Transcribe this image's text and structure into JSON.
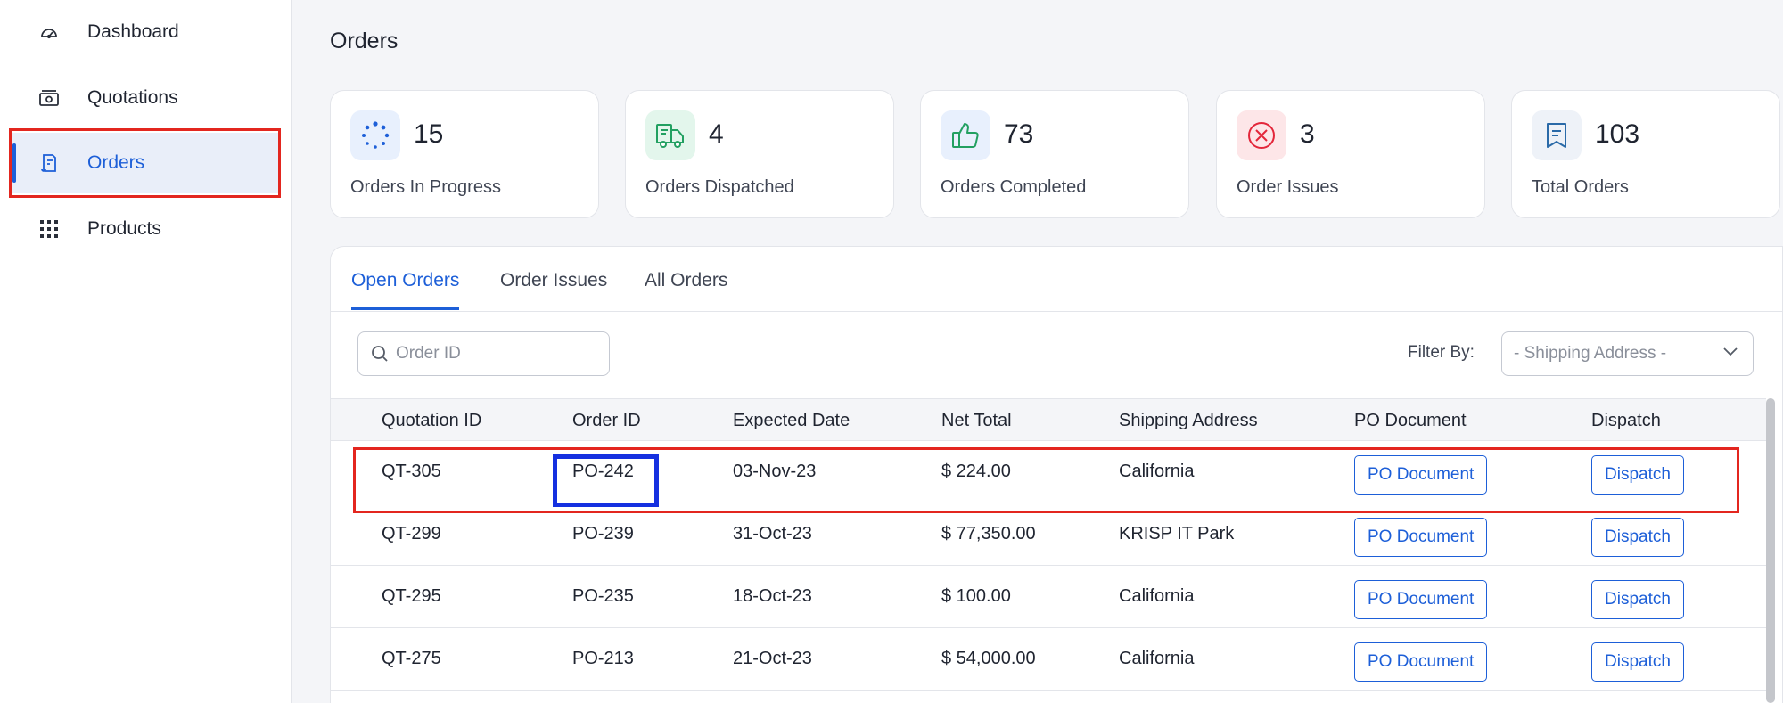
{
  "sidebar": {
    "items": [
      {
        "label": "Dashboard",
        "icon": "dashboard-gauge-icon",
        "active": false
      },
      {
        "label": "Quotations",
        "icon": "quotations-money-icon",
        "active": false
      },
      {
        "label": "Orders",
        "icon": "orders-receipt-icon",
        "active": true
      },
      {
        "label": "Products",
        "icon": "products-grid-icon",
        "active": false
      }
    ]
  },
  "page": {
    "title": "Orders"
  },
  "stats": [
    {
      "value": "15",
      "label": "Orders In Progress",
      "icon": "in-progress-spinner-icon",
      "icon_bg": "#e8f0fd",
      "icon_color": "#1d5fd8"
    },
    {
      "value": "4",
      "label": "Orders Dispatched",
      "icon": "dispatch-truck-icon",
      "icon_bg": "#e3f6ec",
      "icon_color": "#22a061"
    },
    {
      "value": "73",
      "label": "Orders Completed",
      "icon": "thumbs-up-icon",
      "icon_bg": "#e8f0fd",
      "icon_color": "#1d5fd8"
    },
    {
      "value": "3",
      "label": "Order Issues",
      "icon": "error-x-circle-icon",
      "icon_bg": "#fde6e8",
      "icon_color": "#e3263a"
    },
    {
      "value": "103",
      "label": "Total Orders",
      "icon": "total-orders-doc-icon",
      "icon_bg": "#eef2f8",
      "icon_color": "#2a6aa8"
    }
  ],
  "tabs": [
    {
      "label": "Open Orders",
      "active": true
    },
    {
      "label": "Order Issues",
      "active": false
    },
    {
      "label": "All Orders",
      "active": false
    }
  ],
  "search": {
    "placeholder": "Order ID",
    "value": ""
  },
  "filter": {
    "label": "Filter By:",
    "value": "- Shipping Address -"
  },
  "table": {
    "columns": [
      "Quotation ID",
      "Order ID",
      "Expected Date",
      "Net Total",
      "Shipping Address",
      "PO Document",
      "Dispatch"
    ],
    "rows": [
      {
        "quotation_id": "QT-305",
        "order_id": "PO-242",
        "expected_date": "03-Nov-23",
        "net_total": "$ 224.00",
        "shipping_address": "California",
        "po_button": "PO Document",
        "dispatch_button": "Dispatch"
      },
      {
        "quotation_id": "QT-299",
        "order_id": "PO-239",
        "expected_date": "31-Oct-23",
        "net_total": "$ 77,350.00",
        "shipping_address": "KRISP IT Park",
        "po_button": "PO Document",
        "dispatch_button": "Dispatch"
      },
      {
        "quotation_id": "QT-295",
        "order_id": "PO-235",
        "expected_date": "18-Oct-23",
        "net_total": "$ 100.00",
        "shipping_address": "California",
        "po_button": "PO Document",
        "dispatch_button": "Dispatch"
      },
      {
        "quotation_id": "QT-275",
        "order_id": "PO-213",
        "expected_date": "21-Oct-23",
        "net_total": "$ 54,000.00",
        "shipping_address": "California",
        "po_button": "PO Document",
        "dispatch_button": "Dispatch"
      }
    ]
  },
  "colors": {
    "accent": "#1d5fd8",
    "highlight_red": "#e3261f",
    "highlight_blue": "#1530e0"
  }
}
